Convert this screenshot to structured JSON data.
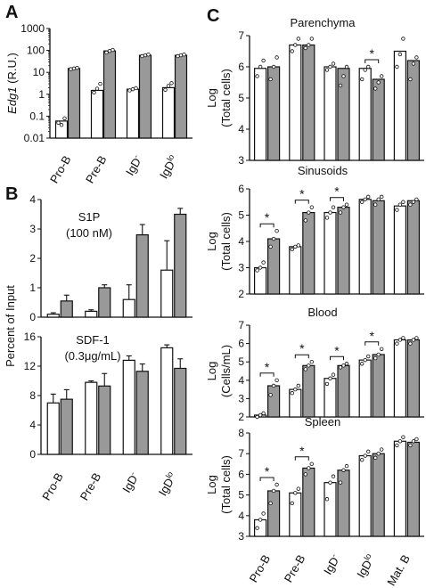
{
  "panels": {
    "A": "A",
    "B": "B",
    "C": "C"
  },
  "chart_data": [
    {
      "id": "A",
      "type": "bar",
      "scale": "log",
      "ylabel": "Edg1 (R.U.)",
      "ylabel_main": "Edg1",
      "ylabel_unit": " (R.U.)",
      "ylim": [
        0.01,
        1000
      ],
      "yticks": [
        "1000",
        "100",
        "10",
        "1",
        "0.1",
        "0.01"
      ],
      "categories": [
        {
          "main": "Pro-B",
          "sup": ""
        },
        {
          "main": "Pre-B",
          "sup": ""
        },
        {
          "main": "IgD",
          "sup": "-"
        },
        {
          "main": "IgD",
          "sup": "lo"
        }
      ],
      "series": [
        {
          "color": "#ffffff",
          "values": [
            0.06,
            1.5,
            1.7,
            2.0
          ],
          "points": [
            [
              0.05,
              0.04,
              0.08
            ],
            [
              1.2,
              1.8,
              3.0
            ],
            [
              1.5,
              1.7,
              1.9
            ],
            [
              1.6,
              2.4,
              3.2
            ]
          ]
        },
        {
          "color": "#999999",
          "values": [
            15,
            95,
            60,
            60
          ],
          "points": [
            [
              14,
              15,
              16
            ],
            [
              80,
              95,
              105
            ],
            [
              55,
              60,
              65
            ],
            [
              55,
              60,
              65
            ]
          ]
        }
      ]
    },
    {
      "id": "B1",
      "type": "bar",
      "title_lines": [
        "S1P",
        "(100 nM)"
      ],
      "ylabel": "Percent of Input",
      "ylim": [
        0,
        4
      ],
      "yticks": [
        "4",
        "3",
        "2",
        "1",
        "0"
      ],
      "series": [
        {
          "color": "#ffffff",
          "values": [
            0.1,
            0.2,
            0.6,
            1.6
          ],
          "errors": [
            0.05,
            0.05,
            0.5,
            1.0
          ]
        },
        {
          "color": "#999999",
          "values": [
            0.55,
            1.0,
            2.8,
            3.5
          ],
          "errors": [
            0.2,
            0.1,
            0.35,
            0.2
          ]
        }
      ]
    },
    {
      "id": "B2",
      "type": "bar",
      "title_lines": [
        "SDF-1",
        "(0.3μg/mL)"
      ],
      "ylim": [
        0,
        16
      ],
      "yticks": [
        "16",
        "12",
        "8",
        "4",
        "0"
      ],
      "categories": [
        {
          "main": "Pro-B",
          "sup": ""
        },
        {
          "main": "Pre-B",
          "sup": ""
        },
        {
          "main": "IgD",
          "sup": "-"
        },
        {
          "main": "IgD",
          "sup": "lo"
        }
      ],
      "series": [
        {
          "color": "#ffffff",
          "values": [
            7.0,
            9.8,
            12.8,
            14.5
          ],
          "errors": [
            1.2,
            0.2,
            0.6,
            0.4
          ]
        },
        {
          "color": "#999999",
          "values": [
            7.5,
            9.3,
            11.3,
            11.7
          ],
          "errors": [
            1.3,
            1.7,
            1.0,
            1.3
          ]
        }
      ]
    },
    {
      "id": "C1",
      "type": "bar",
      "title": "Parenchyma",
      "ylabel_lines": [
        "Log",
        "(Total cells)"
      ],
      "ylim": [
        3,
        7
      ],
      "yticks": [
        "7",
        "6",
        "5",
        "4",
        "3"
      ],
      "series": [
        {
          "color": "#ffffff",
          "values": [
            5.95,
            6.7,
            6.0,
            5.95,
            6.5
          ],
          "points": [
            [
              5.7,
              6.0,
              6.2
            ],
            [
              6.5,
              6.7,
              6.9
            ],
            [
              5.9,
              6.0,
              6.1
            ],
            [
              5.6,
              5.9,
              6.0
            ],
            [
              6.0,
              6.4,
              6.9
            ]
          ]
        },
        {
          "color": "#999999",
          "values": [
            6.0,
            6.7,
            5.95,
            5.6,
            6.2
          ],
          "points": [
            [
              5.6,
              6.0,
              6.3
            ],
            [
              6.6,
              6.7,
              6.9
            ],
            [
              5.4,
              5.7,
              6.0
            ],
            [
              5.3,
              5.5,
              5.7
            ],
            [
              5.6,
              6.1,
              6.3
            ]
          ]
        }
      ],
      "significant": [
        false,
        false,
        false,
        true,
        false
      ]
    },
    {
      "id": "C2",
      "type": "bar",
      "title": "Sinusoids",
      "ylabel_lines": [
        "Log",
        "(Total cells)"
      ],
      "ylim": [
        2,
        6
      ],
      "yticks": [
        "6",
        "5",
        "4",
        "3",
        "2"
      ],
      "series": [
        {
          "color": "#ffffff",
          "values": [
            3.0,
            3.8,
            5.1,
            5.6,
            5.35
          ],
          "points": [
            [
              2.9,
              3.0,
              3.2
            ],
            [
              3.7,
              3.8,
              3.85
            ],
            [
              4.9,
              5.1,
              5.3
            ],
            [
              5.5,
              5.6,
              5.7
            ],
            [
              5.2,
              5.4,
              5.5
            ]
          ]
        },
        {
          "color": "#999999",
          "values": [
            4.1,
            5.1,
            5.3,
            5.55,
            5.55
          ],
          "points": [
            [
              3.8,
              4.1,
              4.4
            ],
            [
              4.8,
              5.1,
              5.3
            ],
            [
              5.1,
              5.3,
              5.4
            ],
            [
              5.4,
              5.6,
              5.7
            ],
            [
              5.4,
              5.5,
              5.6
            ]
          ]
        }
      ],
      "significant": [
        true,
        true,
        true,
        false,
        false
      ]
    },
    {
      "id": "C3",
      "type": "bar",
      "title": "Blood",
      "ylabel_lines": [
        "Log",
        "(Cells/mL)"
      ],
      "ylim": [
        2,
        7
      ],
      "yticks": [
        "7",
        "6",
        "5",
        "4",
        "3",
        "2"
      ],
      "series": [
        {
          "color": "#ffffff",
          "values": [
            2.1,
            3.5,
            4.1,
            5.1,
            6.2
          ],
          "points": [
            [
              2.0,
              2.1,
              2.2
            ],
            [
              3.3,
              3.5,
              3.7
            ],
            [
              3.8,
              4.1,
              4.3
            ],
            [
              4.9,
              5.1,
              5.3
            ],
            [
              6.0,
              6.2,
              6.3
            ]
          ]
        },
        {
          "color": "#999999",
          "values": [
            3.7,
            4.8,
            4.8,
            5.4,
            6.2
          ],
          "points": [
            [
              3.2,
              3.7,
              4.0
            ],
            [
              4.6,
              4.8,
              5.0
            ],
            [
              4.7,
              4.8,
              4.9
            ],
            [
              5.2,
              5.4,
              5.7
            ],
            [
              6.0,
              6.2,
              6.3
            ]
          ]
        }
      ],
      "significant": [
        true,
        true,
        true,
        true,
        false
      ]
    },
    {
      "id": "C4",
      "type": "bar",
      "title": "Spleen",
      "ylabel_lines": [
        "Log",
        "(Total cells)"
      ],
      "ylim": [
        3,
        8
      ],
      "yticks": [
        "8",
        "7",
        "6",
        "5",
        "4",
        "3"
      ],
      "categories": [
        {
          "main": "Pro-B",
          "sup": ""
        },
        {
          "main": "Pre-B",
          "sup": ""
        },
        {
          "main": "IgD",
          "sup": "-"
        },
        {
          "main": "IgD",
          "sup": "lo"
        },
        {
          "main": "Mat. B",
          "sup": ""
        }
      ],
      "series": [
        {
          "color": "#ffffff",
          "values": [
            3.8,
            5.1,
            5.6,
            6.9,
            7.6
          ],
          "points": [
            [
              3.4,
              3.8,
              4.1
            ],
            [
              4.6,
              5.1,
              5.3
            ],
            [
              4.8,
              5.6,
              5.9
            ],
            [
              6.7,
              6.9,
              7.1
            ],
            [
              7.4,
              7.6,
              7.8
            ]
          ]
        },
        {
          "color": "#999999",
          "values": [
            5.2,
            6.3,
            6.2,
            7.0,
            7.55
          ],
          "points": [
            [
              4.6,
              5.2,
              5.5
            ],
            [
              6.0,
              6.3,
              6.5
            ],
            [
              5.6,
              6.2,
              6.4
            ],
            [
              6.8,
              7.0,
              7.2
            ],
            [
              7.4,
              7.6,
              7.7
            ]
          ]
        }
      ],
      "significant": [
        true,
        true,
        false,
        false,
        false
      ]
    }
  ]
}
